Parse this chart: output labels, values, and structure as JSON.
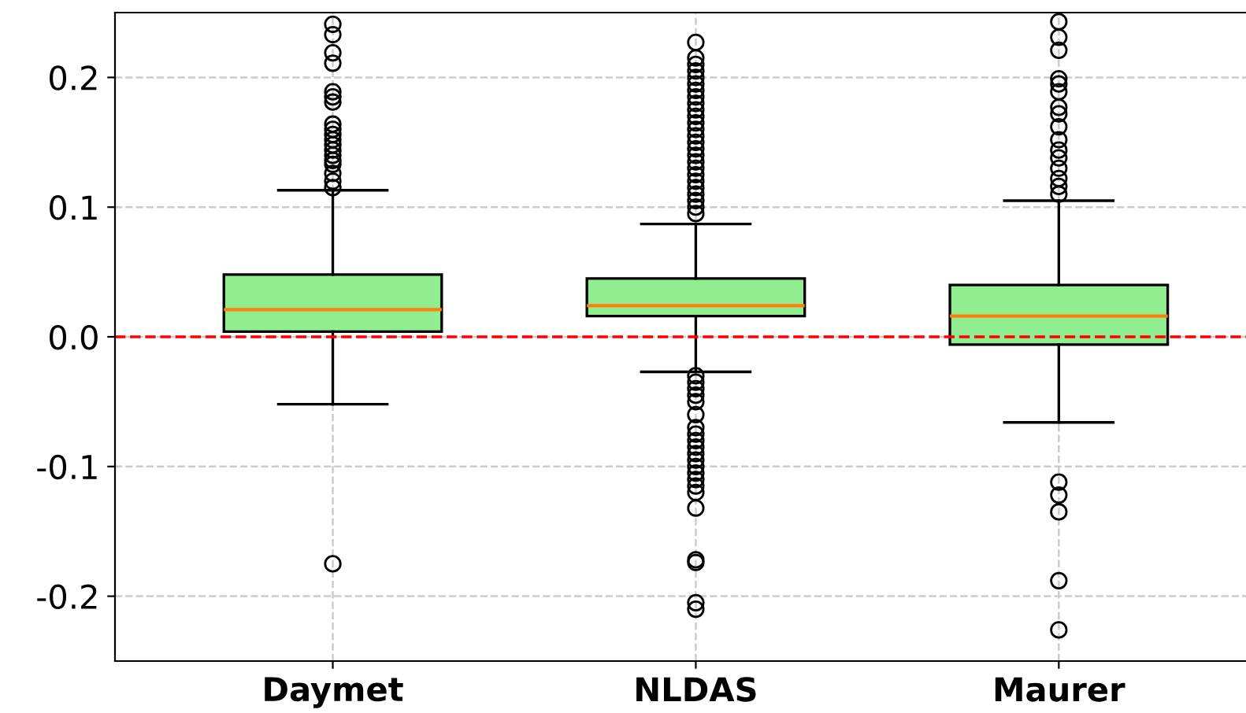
{
  "chart_data": {
    "type": "box",
    "categories": [
      "Daymet",
      "NLDAS",
      "Maurer"
    ],
    "boxes": [
      {
        "low": -0.052,
        "q1": 0.004,
        "median": 0.021,
        "q3": 0.048,
        "high": 0.113,
        "outliers": [
          0.241,
          0.233,
          0.219,
          0.211,
          0.189,
          0.185,
          0.181,
          0.164,
          0.16,
          0.156,
          0.152,
          0.148,
          0.144,
          0.14,
          0.136,
          0.133,
          0.126,
          0.12,
          0.115,
          -0.175
        ]
      },
      {
        "low": -0.027,
        "q1": 0.016,
        "median": 0.024,
        "q3": 0.045,
        "high": 0.087,
        "outliers": [
          0.227,
          0.215,
          0.21,
          0.205,
          0.2,
          0.195,
          0.19,
          0.185,
          0.18,
          0.175,
          0.17,
          0.165,
          0.16,
          0.155,
          0.15,
          0.145,
          0.14,
          0.135,
          0.13,
          0.125,
          0.12,
          0.115,
          0.11,
          0.105,
          0.1,
          0.095,
          -0.03,
          -0.035,
          -0.04,
          -0.045,
          -0.05,
          -0.06,
          -0.07,
          -0.075,
          -0.08,
          -0.085,
          -0.09,
          -0.095,
          -0.1,
          -0.105,
          -0.11,
          -0.115,
          -0.12,
          -0.132,
          -0.172,
          -0.174,
          -0.205,
          -0.21
        ]
      },
      {
        "low": -0.066,
        "q1": -0.006,
        "median": 0.016,
        "q3": 0.04,
        "high": 0.105,
        "outliers": [
          0.243,
          0.231,
          0.221,
          0.199,
          0.195,
          0.189,
          0.177,
          0.172,
          0.162,
          0.152,
          0.144,
          0.138,
          0.13,
          0.122,
          0.116,
          0.11,
          -0.112,
          -0.122,
          -0.135,
          -0.188,
          -0.226
        ]
      }
    ],
    "color": "#90ee90",
    "ylim": [
      -0.25,
      0.25
    ],
    "yticks": [
      -0.2,
      -0.1,
      {
        "value": 0,
        "label": "0.0"
      },
      0.1,
      0.2
    ],
    "ref_lines": [
      {
        "axis": "y",
        "value": 0,
        "color": "#ff0000",
        "line_style": "dashed"
      }
    ],
    "grid": true
  }
}
